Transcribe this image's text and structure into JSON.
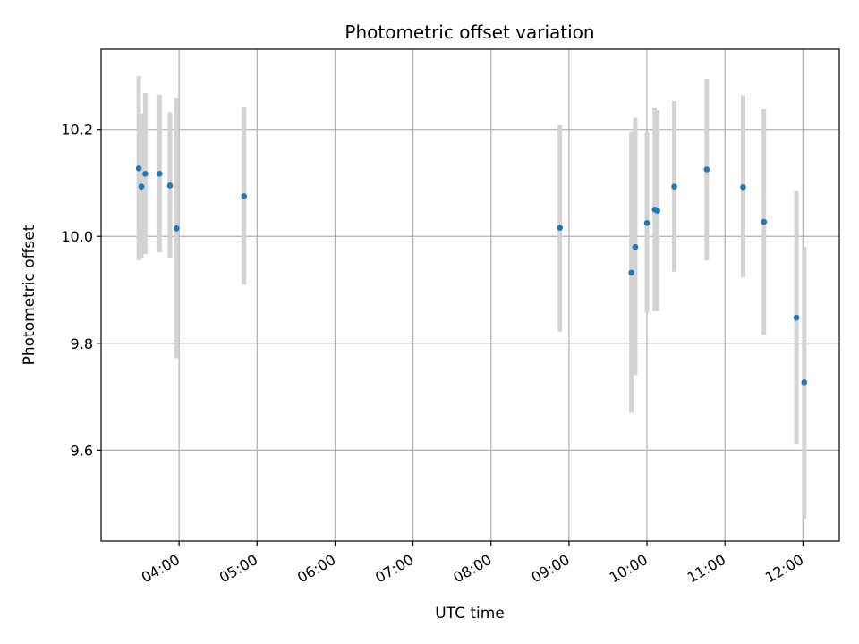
{
  "chart_data": {
    "type": "scatter",
    "title": "Photometric offset variation",
    "xlabel": "UTC time",
    "ylabel": "Photometric offset",
    "x_ticks": [
      "04:00",
      "05:00",
      "06:00",
      "07:00",
      "08:00",
      "09:00",
      "10:00",
      "11:00",
      "12:00"
    ],
    "y_ticks": [
      "9.6",
      "9.8",
      "10.0",
      "10.2"
    ],
    "xlim": [
      "03:00",
      "12:28"
    ],
    "ylim": [
      9.43,
      10.35
    ],
    "grid": true,
    "marker_color": "#1f77b4",
    "errorbar_color": "#d3d3d3",
    "points": [
      {
        "x": "03:29",
        "y": 10.127,
        "ylow": 9.955,
        "yhigh": 10.3
      },
      {
        "x": "03:31",
        "y": 10.093,
        "ylow": 9.96,
        "yhigh": 10.23
      },
      {
        "x": "03:34",
        "y": 10.117,
        "ylow": 9.967,
        "yhigh": 10.268
      },
      {
        "x": "03:45",
        "y": 10.117,
        "ylow": 9.97,
        "yhigh": 10.265
      },
      {
        "x": "03:53",
        "y": 10.095,
        "ylow": 9.96,
        "yhigh": 10.232
      },
      {
        "x": "03:58",
        "y": 10.015,
        "ylow": 9.772,
        "yhigh": 10.258
      },
      {
        "x": "04:50",
        "y": 10.075,
        "ylow": 9.91,
        "yhigh": 10.241
      },
      {
        "x": "08:53",
        "y": 10.016,
        "ylow": 9.822,
        "yhigh": 10.208
      },
      {
        "x": "09:48",
        "y": 9.932,
        "ylow": 9.67,
        "yhigh": 10.195
      },
      {
        "x": "09:51",
        "y": 9.98,
        "ylow": 9.74,
        "yhigh": 10.222
      },
      {
        "x": "10:00",
        "y": 10.025,
        "ylow": 9.857,
        "yhigh": 10.194
      },
      {
        "x": "10:06",
        "y": 10.05,
        "ylow": 9.86,
        "yhigh": 10.24
      },
      {
        "x": "10:08",
        "y": 10.048,
        "ylow": 9.86,
        "yhigh": 10.236
      },
      {
        "x": "10:21",
        "y": 10.093,
        "ylow": 9.934,
        "yhigh": 10.253
      },
      {
        "x": "10:46",
        "y": 10.125,
        "ylow": 9.955,
        "yhigh": 10.295
      },
      {
        "x": "11:14",
        "y": 10.092,
        "ylow": 9.923,
        "yhigh": 10.264
      },
      {
        "x": "11:30",
        "y": 10.027,
        "ylow": 9.816,
        "yhigh": 10.238
      },
      {
        "x": "11:55",
        "y": 9.848,
        "ylow": 9.612,
        "yhigh": 10.085
      },
      {
        "x": "12:01",
        "y": 9.727,
        "ylow": 9.472,
        "yhigh": 9.98
      }
    ]
  }
}
